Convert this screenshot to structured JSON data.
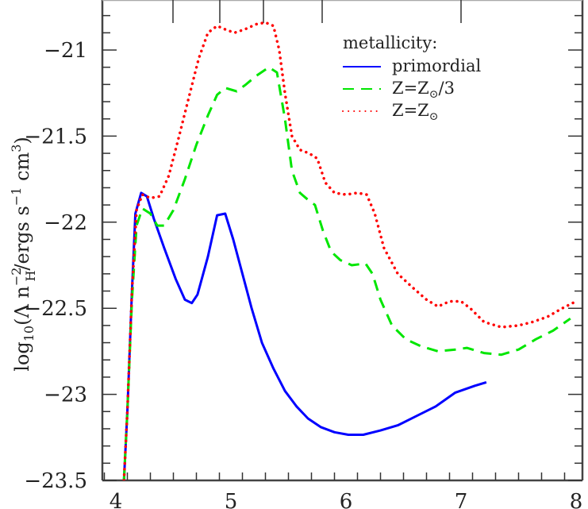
{
  "chart_data": {
    "type": "line",
    "title": "",
    "xlabel": "",
    "ylabel": "log10(Λ n_H^-2 / ergs s^-1 cm^3)",
    "ylabel_parts": {
      "prefix": "log",
      "sub10": "10",
      "open": "(Λ n",
      "sup": "−2",
      "sub": "H",
      "rest": "/ergs s",
      "sup2": "−1",
      "rest2": " cm",
      "sup3": "3",
      "close": ")"
    },
    "xlim": [
      3.87,
      8.0
    ],
    "ylim": [
      -23.5,
      -20.71
    ],
    "x_ticks": [
      4,
      5,
      6,
      7,
      8
    ],
    "x_tick_labels": [
      "4",
      "5",
      "6",
      "7",
      "8"
    ],
    "y_ticks": [
      -21,
      -21.5,
      -22,
      -22.5,
      -23,
      -23.5
    ],
    "y_tick_labels": [
      "−21",
      "−21.5",
      "−22",
      "−22.5",
      "−23",
      "−23.5"
    ],
    "grid": false,
    "legend_title": "metallicity:",
    "legend_position": "upper right",
    "series": [
      {
        "name": "primordial",
        "color": "#0000ff",
        "style": "solid",
        "points": [
          [
            4.07,
            -23.5
          ],
          [
            4.1,
            -23.1
          ],
          [
            4.14,
            -22.4
          ],
          [
            4.17,
            -21.95
          ],
          [
            4.22,
            -21.83
          ],
          [
            4.27,
            -21.85
          ],
          [
            4.33,
            -21.98
          ],
          [
            4.42,
            -22.15
          ],
          [
            4.52,
            -22.33
          ],
          [
            4.6,
            -22.45
          ],
          [
            4.66,
            -22.47
          ],
          [
            4.71,
            -22.42
          ],
          [
            4.8,
            -22.2
          ],
          [
            4.88,
            -21.96
          ],
          [
            4.95,
            -21.95
          ],
          [
            5.02,
            -22.1
          ],
          [
            5.1,
            -22.3
          ],
          [
            5.18,
            -22.5
          ],
          [
            5.27,
            -22.7
          ],
          [
            5.37,
            -22.85
          ],
          [
            5.47,
            -22.98
          ],
          [
            5.57,
            -23.07
          ],
          [
            5.67,
            -23.14
          ],
          [
            5.78,
            -23.19
          ],
          [
            5.9,
            -23.22
          ],
          [
            6.02,
            -23.235
          ],
          [
            6.15,
            -23.235
          ],
          [
            6.3,
            -23.21
          ],
          [
            6.45,
            -23.18
          ],
          [
            6.6,
            -23.13
          ],
          [
            6.78,
            -23.07
          ],
          [
            6.95,
            -22.99
          ],
          [
            7.12,
            -22.95
          ],
          [
            7.22,
            -22.93
          ]
        ]
      },
      {
        "name": "Z=Z⊙/3",
        "label_parts": {
          "main": "Z=Z",
          "sub": "⊙",
          "rest": "/3"
        },
        "color": "#00e600",
        "style": "dashed",
        "points": [
          [
            4.07,
            -23.5
          ],
          [
            4.1,
            -23.1
          ],
          [
            4.14,
            -22.45
          ],
          [
            4.18,
            -22.02
          ],
          [
            4.23,
            -21.92
          ],
          [
            4.3,
            -21.95
          ],
          [
            4.36,
            -22.02
          ],
          [
            4.42,
            -22.02
          ],
          [
            4.5,
            -21.93
          ],
          [
            4.6,
            -21.75
          ],
          [
            4.7,
            -21.55
          ],
          [
            4.8,
            -21.38
          ],
          [
            4.88,
            -21.26
          ],
          [
            4.95,
            -21.22
          ],
          [
            5.05,
            -21.24
          ],
          [
            5.13,
            -21.2
          ],
          [
            5.22,
            -21.15
          ],
          [
            5.33,
            -21.1
          ],
          [
            5.4,
            -21.13
          ],
          [
            5.47,
            -21.4
          ],
          [
            5.53,
            -21.7
          ],
          [
            5.6,
            -21.83
          ],
          [
            5.67,
            -21.87
          ],
          [
            5.73,
            -21.9
          ],
          [
            5.8,
            -22.05
          ],
          [
            5.87,
            -22.17
          ],
          [
            5.95,
            -22.22
          ],
          [
            6.05,
            -22.25
          ],
          [
            6.17,
            -22.24
          ],
          [
            6.23,
            -22.3
          ],
          [
            6.3,
            -22.45
          ],
          [
            6.4,
            -22.6
          ],
          [
            6.52,
            -22.68
          ],
          [
            6.65,
            -22.72
          ],
          [
            6.8,
            -22.75
          ],
          [
            6.95,
            -22.74
          ],
          [
            7.05,
            -22.73
          ],
          [
            7.2,
            -22.76
          ],
          [
            7.35,
            -22.77
          ],
          [
            7.5,
            -22.74
          ],
          [
            7.65,
            -22.68
          ],
          [
            7.8,
            -22.63
          ],
          [
            7.95,
            -22.56
          ]
        ]
      },
      {
        "name": "Z=Z⊙",
        "label_parts": {
          "main": "Z=Z",
          "sub": "⊙",
          "rest": ""
        },
        "color": "#ff0000",
        "style": "dotted",
        "points": [
          [
            4.07,
            -23.5
          ],
          [
            4.1,
            -23.1
          ],
          [
            4.14,
            -22.4
          ],
          [
            4.18,
            -21.93
          ],
          [
            4.23,
            -21.84
          ],
          [
            4.3,
            -21.86
          ],
          [
            4.38,
            -21.85
          ],
          [
            4.46,
            -21.73
          ],
          [
            4.55,
            -21.5
          ],
          [
            4.64,
            -21.26
          ],
          [
            4.72,
            -21.05
          ],
          [
            4.8,
            -20.9
          ],
          [
            4.88,
            -20.86
          ],
          [
            4.95,
            -20.88
          ],
          [
            5.03,
            -20.9
          ],
          [
            5.12,
            -20.88
          ],
          [
            5.22,
            -20.85
          ],
          [
            5.3,
            -20.84
          ],
          [
            5.37,
            -20.86
          ],
          [
            5.42,
            -21.0
          ],
          [
            5.47,
            -21.25
          ],
          [
            5.53,
            -21.5
          ],
          [
            5.6,
            -21.58
          ],
          [
            5.68,
            -21.6
          ],
          [
            5.75,
            -21.63
          ],
          [
            5.82,
            -21.77
          ],
          [
            5.9,
            -21.83
          ],
          [
            6.0,
            -21.84
          ],
          [
            6.1,
            -21.83
          ],
          [
            6.18,
            -21.84
          ],
          [
            6.25,
            -21.95
          ],
          [
            6.33,
            -22.15
          ],
          [
            6.45,
            -22.3
          ],
          [
            6.58,
            -22.38
          ],
          [
            6.7,
            -22.45
          ],
          [
            6.8,
            -22.49
          ],
          [
            6.9,
            -22.46
          ],
          [
            7.0,
            -22.46
          ],
          [
            7.08,
            -22.5
          ],
          [
            7.2,
            -22.58
          ],
          [
            7.35,
            -22.61
          ],
          [
            7.5,
            -22.6
          ],
          [
            7.62,
            -22.58
          ],
          [
            7.75,
            -22.55
          ],
          [
            7.88,
            -22.5
          ],
          [
            8.0,
            -22.46
          ]
        ]
      }
    ]
  }
}
